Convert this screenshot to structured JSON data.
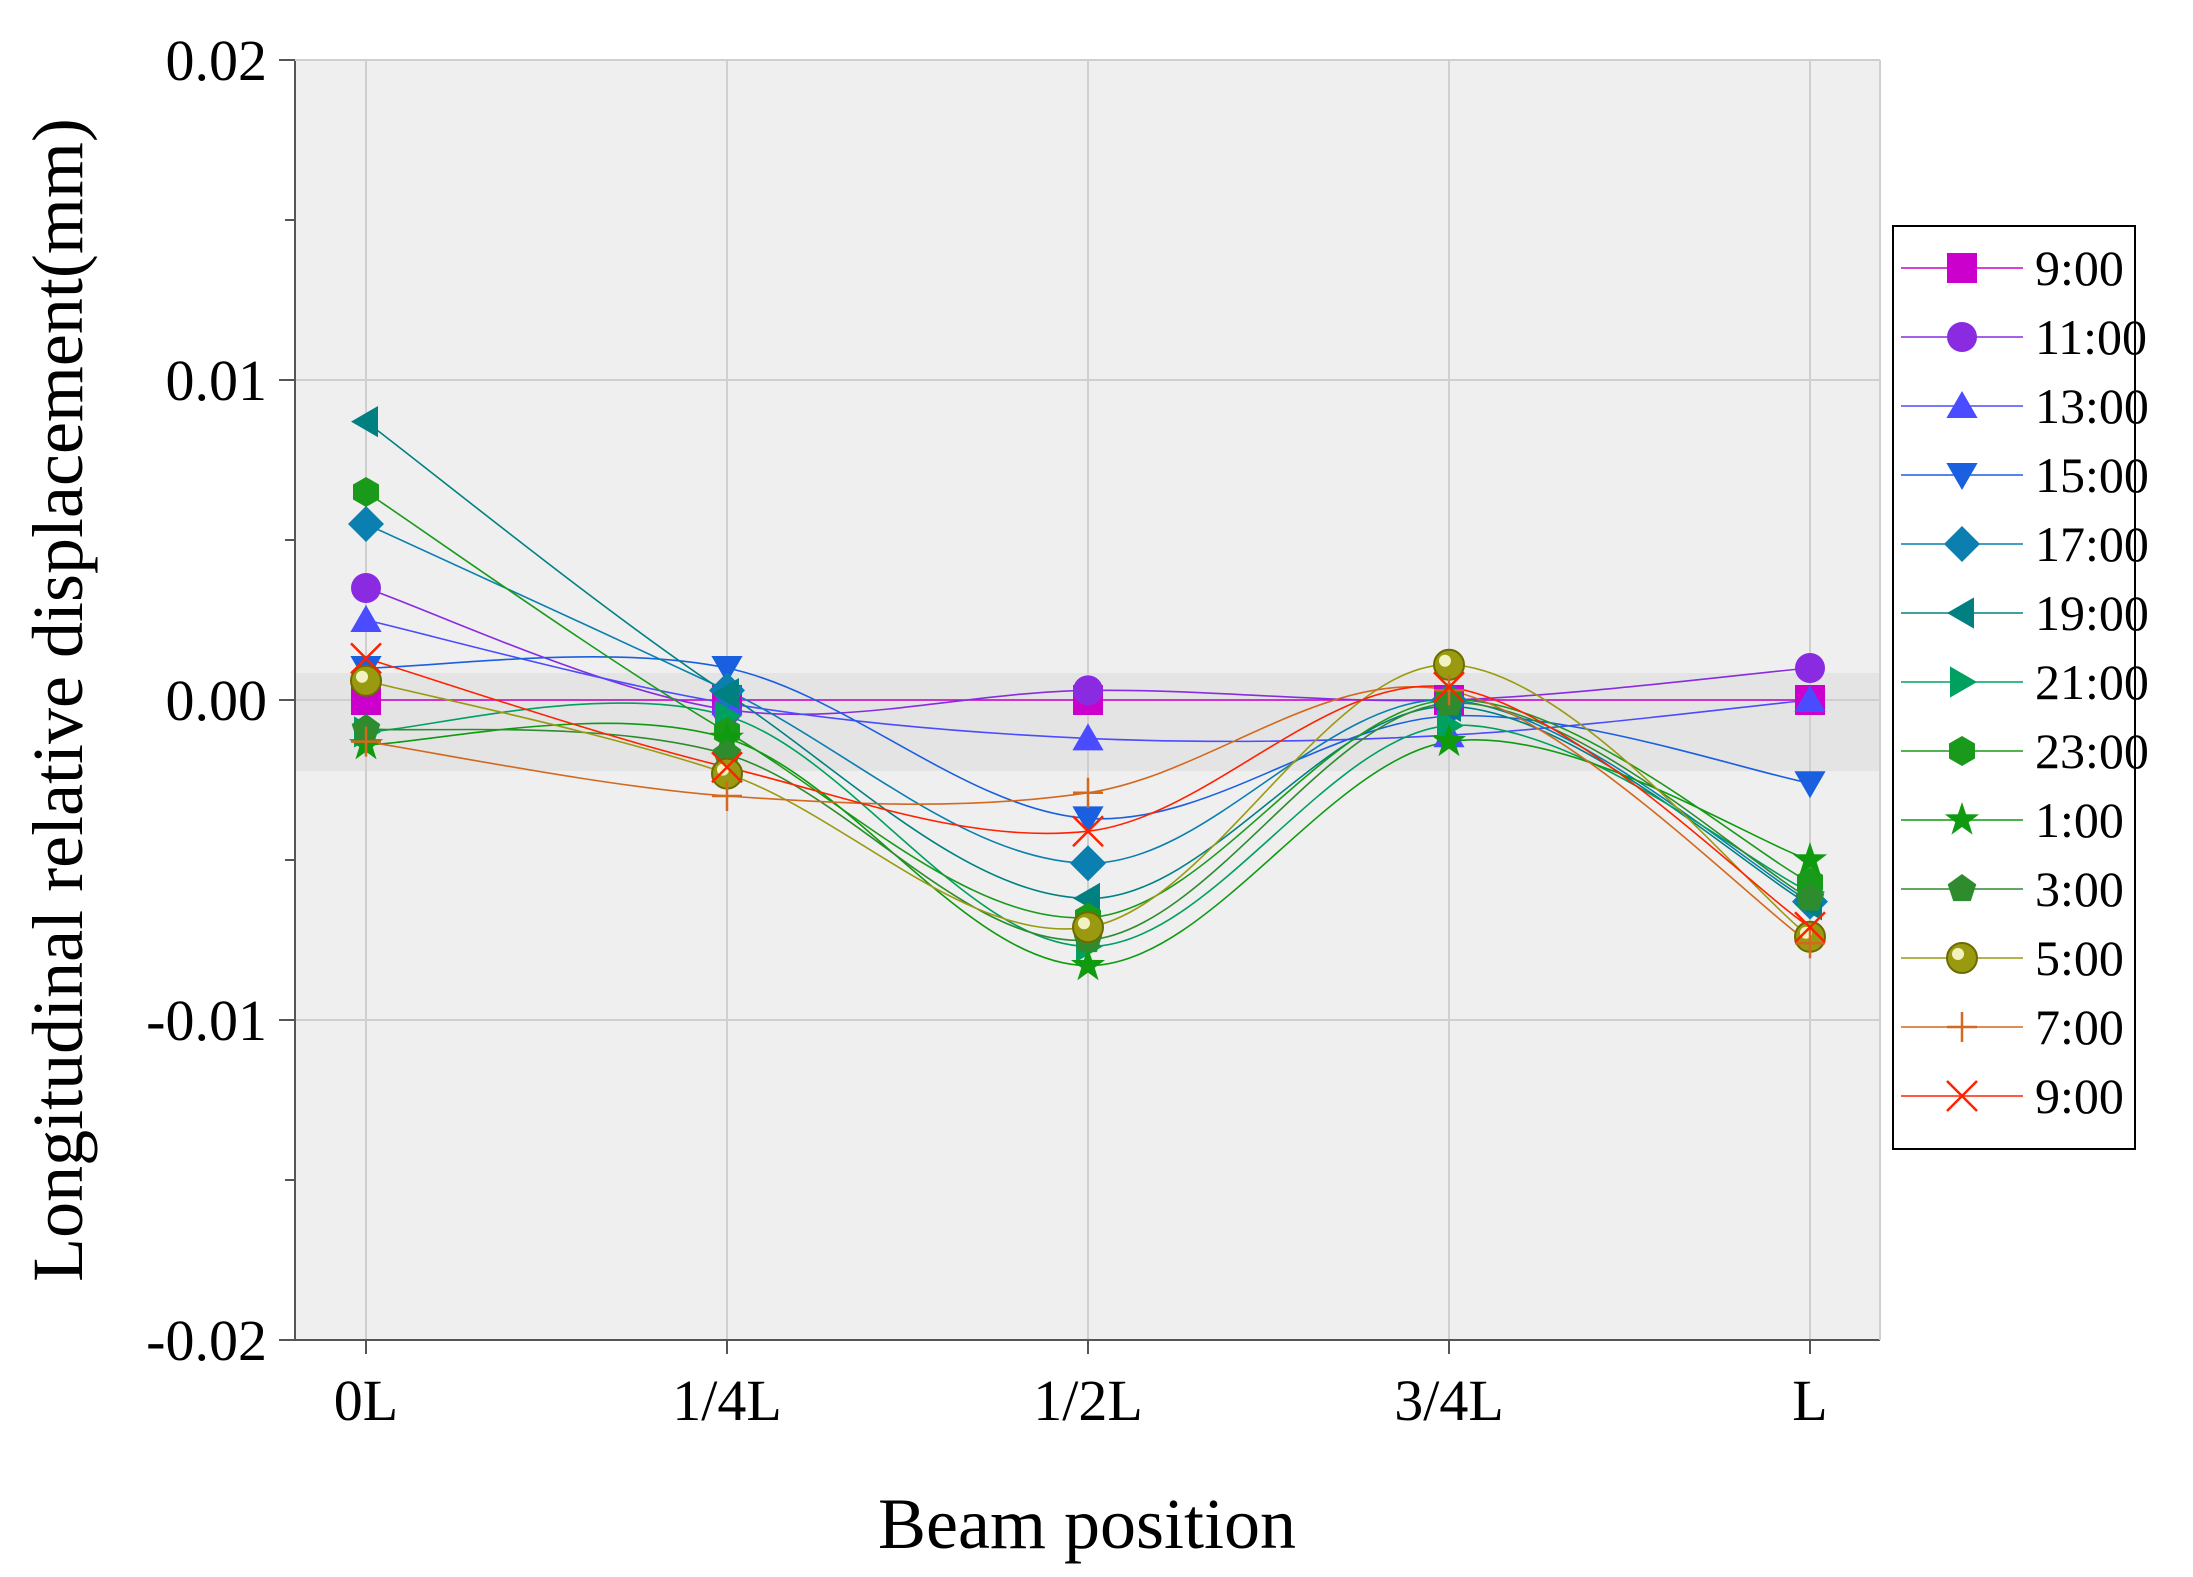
{
  "chart_data": {
    "type": "line",
    "title": "",
    "xlabel": "Beam position",
    "ylabel": "Longitudinal relative displacement(mm)",
    "categories": [
      "0L",
      "1/4L",
      "1/2L",
      "3/4L",
      "L"
    ],
    "ylim": [
      -0.02,
      0.02
    ],
    "yticks": [
      0.02,
      0.01,
      0.0,
      -0.01,
      -0.02
    ],
    "ytick_labels": [
      "0.02",
      "0.01",
      "0.00",
      "-0.01",
      "-0.02"
    ],
    "grid": true,
    "legend_position": "right",
    "series": [
      {
        "name": "9:00",
        "marker": "square",
        "color": "#cc00cc",
        "values": [
          0.0,
          0.0,
          0.0,
          0.0,
          0.0
        ]
      },
      {
        "name": "11:00",
        "marker": "circle",
        "color": "#8a2be2",
        "values": [
          0.0035,
          -0.0003,
          0.0003,
          0.0,
          0.001
        ]
      },
      {
        "name": "13:00",
        "marker": "triangle-up",
        "color": "#4b4bff",
        "values": [
          0.0025,
          -0.0001,
          -0.0012,
          -0.0011,
          0.0
        ]
      },
      {
        "name": "15:00",
        "marker": "triangle-down",
        "color": "#1a5fe0",
        "values": [
          0.001,
          0.001,
          -0.0037,
          -0.0005,
          -0.0026
        ]
      },
      {
        "name": "17:00",
        "marker": "diamond",
        "color": "#0a7fb0",
        "values": [
          0.0055,
          0.0003,
          -0.0051,
          0.0,
          -0.0063
        ]
      },
      {
        "name": "19:00",
        "marker": "triangle-left",
        "color": "#008080",
        "values": [
          0.0087,
          0.0002,
          -0.0062,
          -0.0002,
          -0.0064
        ]
      },
      {
        "name": "21:00",
        "marker": "triangle-right",
        "color": "#00a060",
        "values": [
          -0.001,
          -0.0005,
          -0.0077,
          -0.0008,
          -0.006
        ]
      },
      {
        "name": "23:00",
        "marker": "hexagon",
        "color": "#1a9a1a",
        "values": [
          0.0065,
          -0.001,
          -0.0068,
          0.0,
          -0.0057
        ]
      },
      {
        "name": "1:00",
        "marker": "star",
        "color": "#0f9a0f",
        "values": [
          -0.0014,
          -0.0012,
          -0.0083,
          -0.0013,
          -0.005
        ]
      },
      {
        "name": "3:00",
        "marker": "pentagon",
        "color": "#2e8b2e",
        "values": [
          -0.0009,
          -0.0017,
          -0.0075,
          -0.0001,
          -0.0062
        ]
      },
      {
        "name": "5:00",
        "marker": "ball",
        "color": "#9a9a10",
        "values": [
          0.0006,
          -0.0023,
          -0.0071,
          0.0011,
          -0.0074
        ]
      },
      {
        "name": "7:00",
        "marker": "plus",
        "color": "#d2691e",
        "values": [
          -0.0013,
          -0.003,
          -0.0029,
          0.0003,
          -0.0076
        ]
      },
      {
        "name": "9:00",
        "marker": "x",
        "color": "#ff2200",
        "values": [
          0.0013,
          -0.0021,
          -0.0041,
          0.0004,
          -0.0071
        ]
      }
    ]
  }
}
